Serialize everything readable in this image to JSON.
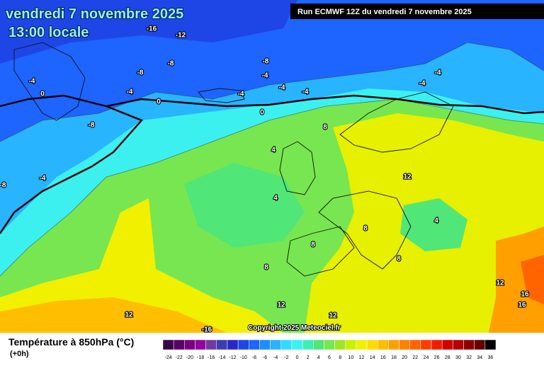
{
  "header": {
    "title": "vendredi 7 novembre 2025",
    "subtitle": "13:00 locale",
    "run": "Run ECMWF 12Z du vendredi 7 novembre 2025"
  },
  "map": {
    "copyright": "Copyright 2025 Meteociel.fr",
    "contour_labels": [
      -16,
      -12,
      -8,
      -4,
      -8,
      -8,
      -4,
      0,
      -4,
      -4,
      -4,
      0,
      -4,
      -4,
      -4,
      0,
      -8,
      8,
      4,
      4,
      12,
      8,
      4,
      8,
      8,
      8,
      12,
      16,
      16,
      12,
      12,
      12,
      -16,
      -8,
      -4
    ]
  },
  "legend": {
    "title": "Température à 850hPa (°C)",
    "step": "(+0h)",
    "levels": [
      -24,
      -22,
      -20,
      -18,
      -16,
      -14,
      -12,
      -10,
      -8,
      -6,
      -4,
      -2,
      0,
      2,
      4,
      6,
      8,
      10,
      12,
      14,
      16,
      18,
      20,
      22,
      24,
      26,
      28,
      30,
      32,
      34,
      36
    ],
    "colors": [
      "#3c0046",
      "#5a0064",
      "#780082",
      "#9600a0",
      "#6e3ca0",
      "#3c3cb4",
      "#2828c8",
      "#1e46e6",
      "#1e64ff",
      "#1e8cff",
      "#28b4ff",
      "#32dcff",
      "#3cf0f0",
      "#3cf0b4",
      "#50e678",
      "#78e650",
      "#a0e628",
      "#c8f000",
      "#f0f000",
      "#ffdc00",
      "#ffbe00",
      "#ffa000",
      "#ff8200",
      "#ff6400",
      "#ff3c00",
      "#f01e00",
      "#d20000",
      "#b40000",
      "#8c0000",
      "#640000",
      "#000000"
    ]
  }
}
